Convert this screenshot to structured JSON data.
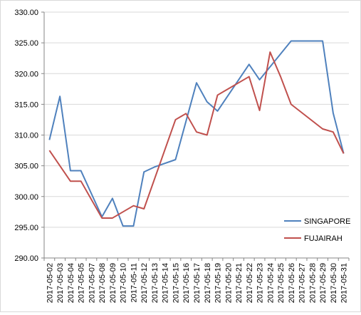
{
  "chart_data": {
    "type": "line",
    "title": "",
    "xlabel": "",
    "ylabel": "",
    "ylim": [
      290,
      330
    ],
    "yticks": [
      "290.00",
      "295.00",
      "300.00",
      "305.00",
      "310.00",
      "315.00",
      "320.00",
      "325.00",
      "330.00"
    ],
    "categories": [
      "2017-05-02",
      "2017-05-03",
      "2017-05-04",
      "2017-05-05",
      "2017-05-07",
      "2017-05-08",
      "2017-05-09",
      "2017-05-10",
      "2017-05-11",
      "2017-05-12",
      "2017-05-13",
      "2017-05-14",
      "2017-05-15",
      "2017-05-16",
      "2017-05-17",
      "2017-05-18",
      "2017-05-19",
      "2017-05-20",
      "2017-05-21",
      "2017-05-22",
      "2017-05-23",
      "2017-05-24",
      "2017-05-25",
      "2017-05-26",
      "2017-05-27",
      "2017-05-28",
      "2017-05-29",
      "2017-05-30",
      "2017-05-31"
    ],
    "grid": true,
    "legend_position": "right",
    "series": [
      {
        "name": "SINGAPORE",
        "color": "#4f81bd",
        "values": [
          309.2,
          316.3,
          304.2,
          304.2,
          null,
          296.7,
          299.7,
          295.2,
          295.2,
          304.0,
          304.8,
          null,
          306.0,
          null,
          318.5,
          315.4,
          313.9,
          null,
          null,
          321.5,
          319.0,
          null,
          null,
          325.3,
          null,
          null,
          325.3,
          313.6,
          307.0
        ]
      },
      {
        "name": "FUJAIRAH",
        "color": "#c0504d",
        "values": [
          307.5,
          null,
          302.5,
          302.5,
          null,
          296.5,
          296.5,
          null,
          298.5,
          298.0,
          null,
          null,
          312.5,
          313.5,
          310.5,
          310.0,
          316.5,
          null,
          null,
          319.5,
          314.0,
          323.5,
          319.5,
          315.0,
          null,
          null,
          311.0,
          310.5,
          307.0
        ]
      }
    ]
  }
}
